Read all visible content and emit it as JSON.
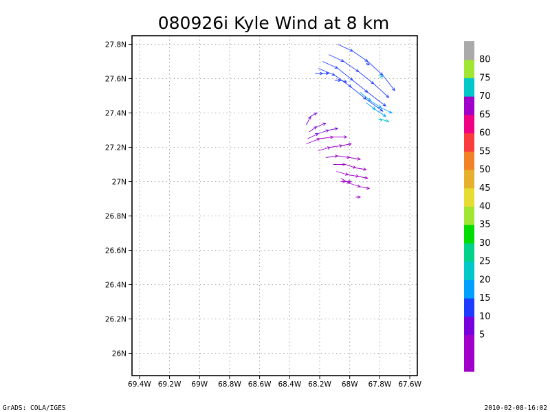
{
  "chart_data": {
    "type": "vector-field",
    "title": "080926i Kyle Wind at 8 km",
    "xlabel": "",
    "ylabel": "",
    "xlim": [
      -69.45,
      -67.55
    ],
    "ylim": [
      25.87,
      27.85
    ],
    "grid": true,
    "x_ticks": [
      {
        "value": -69.4,
        "label": "69.4W"
      },
      {
        "value": -69.2,
        "label": "69.2W"
      },
      {
        "value": -69.0,
        "label": "69W"
      },
      {
        "value": -68.8,
        "label": "68.8W"
      },
      {
        "value": -68.6,
        "label": "68.6W"
      },
      {
        "value": -68.4,
        "label": "68.4W"
      },
      {
        "value": -68.2,
        "label": "68.2W"
      },
      {
        "value": -68.0,
        "label": "68W"
      },
      {
        "value": -67.8,
        "label": "67.8W"
      },
      {
        "value": -67.6,
        "label": "67.6W"
      }
    ],
    "y_ticks": [
      {
        "value": 26.0,
        "label": "26N"
      },
      {
        "value": 26.2,
        "label": "26.2N"
      },
      {
        "value": 26.4,
        "label": "26.4N"
      },
      {
        "value": 26.6,
        "label": "26.6N"
      },
      {
        "value": 26.8,
        "label": "26.8N"
      },
      {
        "value": 27.0,
        "label": "27N"
      },
      {
        "value": 27.2,
        "label": "27.2N"
      },
      {
        "value": 27.4,
        "label": "27.4N"
      },
      {
        "value": 27.6,
        "label": "27.6N"
      },
      {
        "value": 27.8,
        "label": "27.8N"
      }
    ],
    "colorbar": {
      "bands": [
        {
          "label": "",
          "color": "#a000c8"
        },
        {
          "label": "5",
          "color": "#a000c8"
        },
        {
          "label": "10",
          "color": "#7800dc"
        },
        {
          "label": "15",
          "color": "#1e3cff"
        },
        {
          "label": "20",
          "color": "#00a0ff"
        },
        {
          "label": "25",
          "color": "#00c8c8"
        },
        {
          "label": "30",
          "color": "#00d28c"
        },
        {
          "label": "35",
          "color": "#00dc00"
        },
        {
          "label": "40",
          "color": "#a0e632"
        },
        {
          "label": "45",
          "color": "#e6dc32"
        },
        {
          "label": "50",
          "color": "#e6af2d"
        },
        {
          "label": "55",
          "color": "#f08228"
        },
        {
          "label": "60",
          "color": "#fa3c3c"
        },
        {
          "label": "65",
          "color": "#f00082"
        },
        {
          "label": "70",
          "color": "#a000c8"
        },
        {
          "label": "75",
          "color": "#00c8c8"
        },
        {
          "label": "80",
          "color": "#a0e632"
        },
        {
          "label": "",
          "color": "#aaaaaa"
        }
      ]
    },
    "streamlines": [
      {
        "color": "#1e3cff",
        "points": [
          [
            -68.08,
            27.8
          ],
          [
            -67.98,
            27.76
          ],
          [
            -67.88,
            27.7
          ],
          [
            -67.78,
            27.62
          ],
          [
            -67.7,
            27.53
          ]
        ]
      },
      {
        "color": "#1e3cff",
        "points": [
          [
            -68.14,
            27.74
          ],
          [
            -68.04,
            27.7
          ],
          [
            -67.94,
            27.64
          ],
          [
            -67.84,
            27.57
          ],
          [
            -67.74,
            27.49
          ]
        ]
      },
      {
        "color": "#1e3cff",
        "points": [
          [
            -68.18,
            27.7
          ],
          [
            -68.08,
            27.66
          ],
          [
            -67.98,
            27.59
          ],
          [
            -67.88,
            27.52
          ],
          [
            -67.76,
            27.44
          ]
        ]
      },
      {
        "color": "#1e3cff",
        "points": [
          [
            -68.21,
            27.66
          ],
          [
            -68.1,
            27.62
          ],
          [
            -67.99,
            27.55
          ],
          [
            -67.89,
            27.48
          ],
          [
            -67.78,
            27.41
          ]
        ]
      },
      {
        "color": "#1e3cff",
        "points": [
          [
            -68.23,
            27.63
          ],
          [
            -68.18,
            27.63
          ],
          [
            -68.14,
            27.63
          ]
        ]
      },
      {
        "color": "#1e3cff",
        "points": [
          [
            -68.1,
            27.59
          ],
          [
            -68.06,
            27.59
          ],
          [
            -68.02,
            27.58
          ]
        ]
      },
      {
        "color": "#1e3cff",
        "points": [
          [
            -67.89,
            27.69
          ],
          [
            -67.87,
            27.68
          ]
        ]
      },
      {
        "color": "#00a0ff",
        "points": [
          [
            -67.93,
            27.52
          ],
          [
            -67.86,
            27.47
          ],
          [
            -67.79,
            27.43
          ],
          [
            -67.72,
            27.4
          ]
        ]
      },
      {
        "color": "#00a0ff",
        "points": [
          [
            -67.89,
            27.46
          ],
          [
            -67.83,
            27.42
          ],
          [
            -67.76,
            27.38
          ]
        ]
      },
      {
        "color": "#00c8c8",
        "points": [
          [
            -67.81,
            27.36
          ],
          [
            -67.78,
            27.36
          ],
          [
            -67.74,
            27.35
          ]
        ]
      },
      {
        "color": "#00c8c8",
        "points": [
          [
            -67.81,
            27.62
          ],
          [
            -67.78,
            27.61
          ]
        ]
      },
      {
        "color": "#7800dc",
        "points": [
          [
            -68.29,
            27.33
          ],
          [
            -68.26,
            27.38
          ],
          [
            -68.22,
            27.4
          ]
        ]
      },
      {
        "color": "#7800dc",
        "points": [
          [
            -68.27,
            27.29
          ],
          [
            -68.22,
            27.32
          ],
          [
            -68.16,
            27.34
          ]
        ]
      },
      {
        "color": "#7800dc",
        "points": [
          [
            -68.28,
            27.25
          ],
          [
            -68.21,
            27.28
          ],
          [
            -68.14,
            27.3
          ],
          [
            -68.08,
            27.31
          ]
        ]
      },
      {
        "color": "#a000c8",
        "points": [
          [
            -68.29,
            27.22
          ],
          [
            -68.2,
            27.25
          ],
          [
            -68.11,
            27.26
          ],
          [
            -68.02,
            27.26
          ]
        ]
      },
      {
        "color": "#a000c8",
        "points": [
          [
            -68.21,
            27.18
          ],
          [
            -68.13,
            27.2
          ],
          [
            -68.05,
            27.21
          ],
          [
            -67.99,
            27.22
          ]
        ]
      },
      {
        "color": "#a000c8",
        "points": [
          [
            -68.16,
            27.14
          ],
          [
            -68.08,
            27.15
          ],
          [
            -68.0,
            27.14
          ],
          [
            -67.93,
            27.13
          ]
        ]
      },
      {
        "color": "#a000c8",
        "points": [
          [
            -68.11,
            27.1
          ],
          [
            -68.03,
            27.1
          ],
          [
            -67.96,
            27.08
          ],
          [
            -67.89,
            27.07
          ]
        ]
      },
      {
        "color": "#a000c8",
        "points": [
          [
            -68.09,
            27.06
          ],
          [
            -68.01,
            27.04
          ],
          [
            -67.94,
            27.03
          ],
          [
            -67.88,
            27.02
          ]
        ]
      },
      {
        "color": "#a000c8",
        "points": [
          [
            -68.06,
            27.02
          ],
          [
            -68.0,
            26.99
          ],
          [
            -67.93,
            26.97
          ],
          [
            -67.87,
            26.96
          ]
        ]
      },
      {
        "color": "#a000c8",
        "points": [
          [
            -68.06,
            27.0
          ],
          [
            -68.03,
            27.0
          ],
          [
            -67.99,
            27.0
          ]
        ]
      },
      {
        "color": "#a000c8",
        "points": [
          [
            -67.96,
            26.91
          ],
          [
            -67.93,
            26.91
          ]
        ]
      }
    ]
  },
  "footer": {
    "left": "GrADS: COLA/IGES",
    "right": "2010-02-08-16:02"
  }
}
